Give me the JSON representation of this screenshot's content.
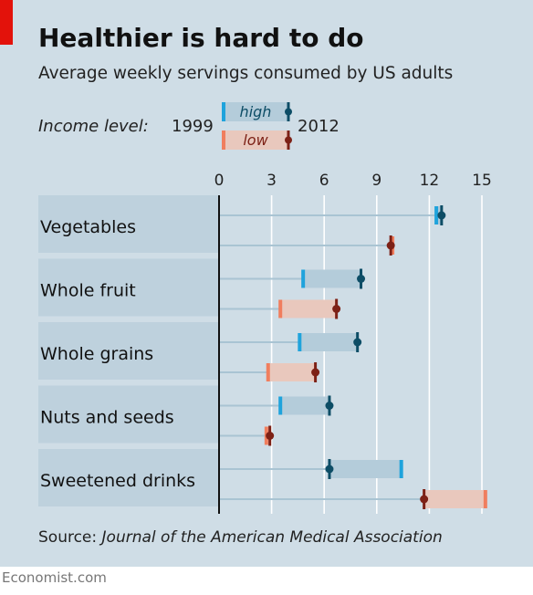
{
  "title": "Healthier is hard to do",
  "subtitle": "Average weekly servings consumed by US adults",
  "legend": {
    "label": "Income level:",
    "year_start": "1999",
    "year_end": "2012",
    "high": "high",
    "low": "low"
  },
  "source_prefix": "Source: ",
  "source_name": "Journal of the American Medical Association",
  "footer": "Economist.com",
  "colors": {
    "high_1999": "#1fa3dc",
    "high_2012": "#0d4d66",
    "high_fill": "#b4ccda",
    "low_1999": "#f07e5e",
    "low_2012": "#7d2116",
    "low_fill": "#e9c8bd",
    "track": "#a9c4d3",
    "label_band": "#bed1dd"
  },
  "chart_data": {
    "type": "dumbbell",
    "x_ticks": [
      0,
      3,
      6,
      9,
      12,
      15
    ],
    "xlim": [
      0,
      15.5
    ],
    "categories": [
      "Vegetables",
      "Whole fruit",
      "Whole grains",
      "Nuts and seeds",
      "Sweetened drinks"
    ],
    "series": [
      {
        "name": "high",
        "start_year": "1999",
        "end_year": "2012",
        "start": [
          12.4,
          4.8,
          4.6,
          3.5,
          10.4
        ],
        "end": [
          12.7,
          8.1,
          7.9,
          6.3,
          6.3
        ]
      },
      {
        "name": "low",
        "start_year": "1999",
        "end_year": "2012",
        "start": [
          9.9,
          3.5,
          2.8,
          2.7,
          15.2
        ],
        "end": [
          9.8,
          6.7,
          5.5,
          2.9,
          11.7
        ]
      }
    ]
  }
}
